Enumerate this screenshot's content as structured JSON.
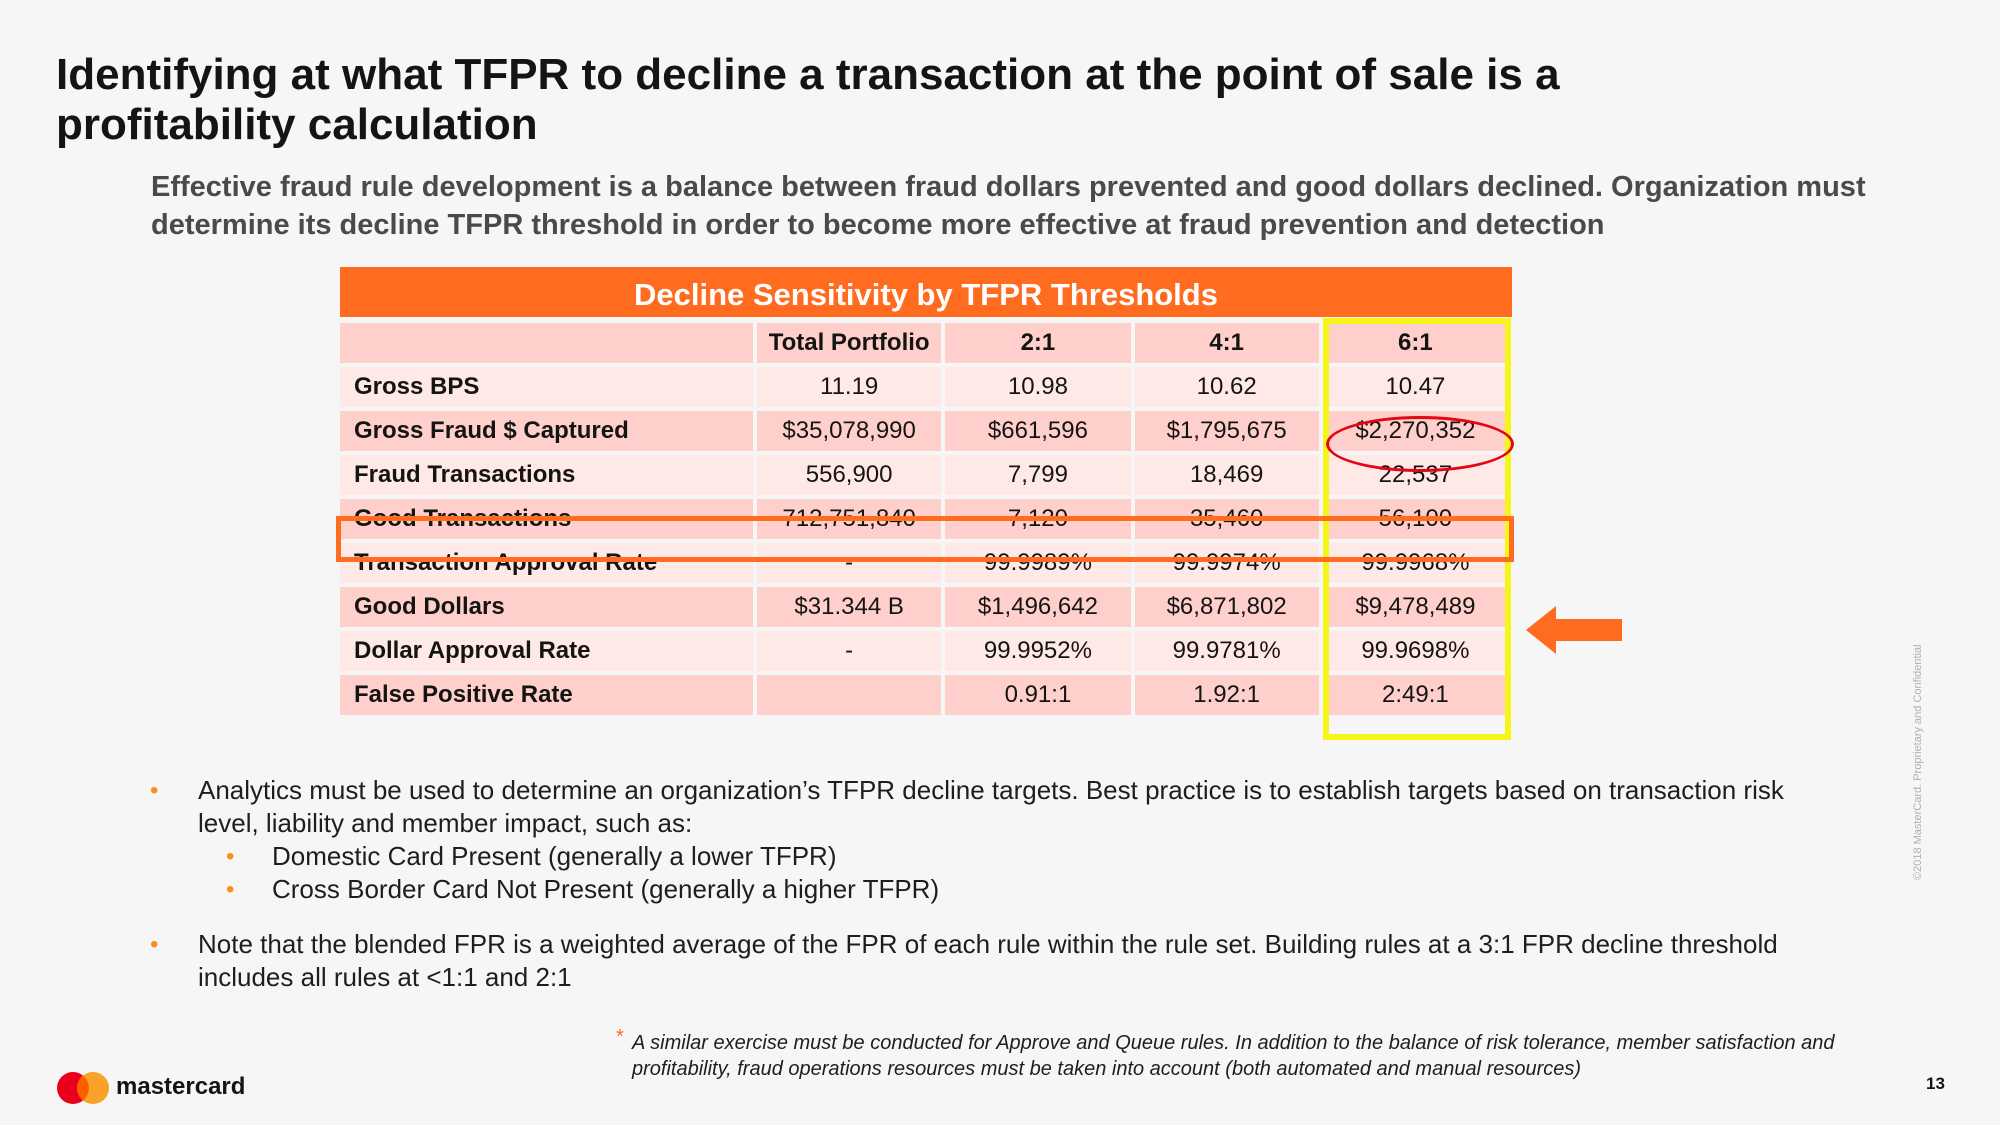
{
  "title": "Identifying at what TFPR to decline a transaction at the point of sale is a profitability calculation",
  "subtitle": "Effective fraud rule development is a balance between fraud dollars prevented and good dollars declined.  Organization must determine its decline TFPR threshold in order to become more effective at fraud prevention and detection",
  "table": {
    "title": "Decline Sensitivity by TFPR Thresholds",
    "columns": [
      "",
      "Total Portfolio",
      "2:1",
      "4:1",
      "6:1"
    ],
    "rows": [
      {
        "label": "Gross BPS",
        "values": [
          "11.19",
          "10.98",
          "10.62",
          "10.47"
        ]
      },
      {
        "label": "Gross Fraud $ Captured",
        "values": [
          "$35,078,990",
          "$661,596",
          "$1,795,675",
          "$2,270,352"
        ]
      },
      {
        "label": "Fraud Transactions",
        "values": [
          "556,900",
          "7,799",
          "18,469",
          "22,537"
        ]
      },
      {
        "label": "Good Transactions",
        "values": [
          "712,751,840",
          "7,120",
          "35,460",
          "56,100"
        ]
      },
      {
        "label": "Transaction Approval Rate",
        "values": [
          "-",
          "99.9989%",
          "99.9974%",
          "99.9968%"
        ]
      },
      {
        "label": "Good Dollars",
        "values": [
          "$31.344 B",
          "$1,496,642",
          "$6,871,802",
          "$9,478,489"
        ]
      },
      {
        "label": "Dollar Approval Rate",
        "values": [
          "-",
          "99.9952%",
          "99.9781%",
          "99.9698%"
        ]
      },
      {
        "label": "False Positive Rate",
        "values": [
          "",
          "0.91:1",
          "1.92:1",
          "2:49:1"
        ]
      }
    ]
  },
  "bullets": [
    {
      "text": "Analytics must be used to determine an organization’s TFPR decline targets.  Best practice is to establish targets based on transaction risk level, liability and member impact, such as:",
      "sub": [
        "Domestic Card Present (generally a lower TFPR)",
        "Cross Border Card Not Present (generally a higher TFPR)"
      ]
    },
    {
      "text": "Note that the blended FPR is a weighted average of the FPR of each rule within the rule set.  Building rules at a 3:1 FPR decline threshold includes all rules at <1:1 and 2:1"
    }
  ],
  "footnote": {
    "marker": "*",
    "text": "A similar exercise must be conducted for Approve and Queue rules.  In addition to the balance of risk tolerance, member satisfaction and profitability, fraud operations resources must be taken into account (both automated and manual resources)"
  },
  "footer": {
    "brand": "mastercard",
    "page_number": "13",
    "copyright": "©2018 MasterCard. Proprietary and Confidential"
  },
  "colors": {
    "accent_orange": "#ff6b1f",
    "highlight_yellow": "#f5f51a",
    "circle_red": "#e30613",
    "logo_red": "#eb001b",
    "logo_yellow": "#f79e1b",
    "row_dark": "#ffd0cb",
    "row_light": "#ffe9e6"
  },
  "icons": {
    "arrow": "left-arrow-icon",
    "logo": "mastercard-logo-icon"
  }
}
